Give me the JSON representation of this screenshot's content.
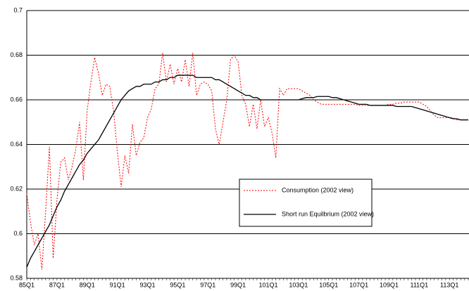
{
  "chart_data": {
    "type": "line",
    "categories": [
      "85Q1",
      null,
      null,
      null,
      null,
      null,
      null,
      null,
      "87Q1",
      null,
      null,
      null,
      null,
      null,
      null,
      null,
      "89Q1",
      null,
      null,
      null,
      null,
      null,
      null,
      null,
      "91Q1",
      null,
      null,
      null,
      null,
      null,
      null,
      null,
      "93Q1",
      null,
      null,
      null,
      null,
      null,
      null,
      null,
      "95Q1",
      null,
      null,
      null,
      null,
      null,
      null,
      null,
      "97Q1",
      null,
      null,
      null,
      null,
      null,
      null,
      null,
      "99Q1",
      null,
      null,
      null,
      null,
      null,
      null,
      null,
      "101Q1",
      null,
      null,
      null,
      null,
      null,
      null,
      null,
      "103Q1",
      null,
      null,
      null,
      null,
      null,
      null,
      null,
      "105Q1",
      null,
      null,
      null,
      null,
      null,
      null,
      null,
      "107Q1",
      null,
      null,
      null,
      null,
      null,
      null,
      null,
      "109Q1",
      null,
      null,
      null,
      null,
      null,
      null,
      null,
      "111Q1",
      null,
      null,
      null,
      null,
      null,
      null,
      null,
      "113Q1",
      null,
      null,
      null,
      null,
      null
    ],
    "series": [
      {
        "name": "Consumption (2002 view)",
        "color": "#ff0000",
        "style": "dotted",
        "values": [
          0.618,
          0.605,
          0.595,
          0.6,
          0.584,
          0.61,
          0.639,
          0.589,
          0.615,
          0.632,
          0.634,
          0.624,
          0.63,
          0.638,
          0.65,
          0.624,
          0.655,
          0.668,
          0.679,
          0.672,
          0.662,
          0.667,
          0.666,
          0.655,
          0.637,
          0.621,
          0.635,
          0.627,
          0.649,
          0.635,
          0.641,
          0.643,
          0.652,
          0.656,
          0.665,
          0.667,
          0.681,
          0.668,
          0.676,
          0.667,
          0.674,
          0.668,
          0.678,
          0.666,
          0.681,
          0.662,
          0.667,
          0.668,
          0.667,
          0.664,
          0.647,
          0.64,
          0.65,
          0.66,
          0.678,
          0.68,
          0.677,
          0.662,
          0.658,
          0.648,
          0.658,
          0.647,
          0.66,
          0.648,
          0.652,
          0.645,
          0.634,
          0.665,
          0.662,
          0.665,
          0.665,
          0.665,
          0.665,
          0.664,
          0.663,
          0.662,
          0.66,
          0.659,
          0.658,
          0.658,
          0.658,
          0.658,
          0.658,
          0.658,
          0.658,
          0.658,
          0.658,
          0.658,
          0.6575,
          0.6575,
          0.6575,
          0.6575,
          0.6575,
          0.6575,
          0.6575,
          0.6575,
          0.658,
          0.658,
          0.6585,
          0.6585,
          0.659,
          0.659,
          0.659,
          0.659,
          0.659,
          0.658,
          0.657,
          0.655,
          0.653,
          0.652,
          0.652,
          0.652,
          0.652,
          0.652,
          0.651,
          0.651,
          0.651,
          0.651
        ]
      },
      {
        "name": "Short run Equilbrium (2002 view)",
        "color": "#000000",
        "style": "solid",
        "values": [
          0.585,
          0.589,
          0.592,
          0.595,
          0.598,
          0.601,
          0.604,
          0.608,
          0.612,
          0.615,
          0.619,
          0.622,
          0.625,
          0.628,
          0.631,
          0.633,
          0.636,
          0.638,
          0.64,
          0.642,
          0.645,
          0.648,
          0.651,
          0.654,
          0.657,
          0.66,
          0.662,
          0.664,
          0.665,
          0.666,
          0.666,
          0.667,
          0.667,
          0.667,
          0.668,
          0.668,
          0.669,
          0.669,
          0.67,
          0.67,
          0.671,
          0.671,
          0.671,
          0.671,
          0.671,
          0.67,
          0.67,
          0.67,
          0.67,
          0.67,
          0.669,
          0.669,
          0.668,
          0.667,
          0.666,
          0.665,
          0.664,
          0.663,
          0.662,
          0.662,
          0.661,
          0.661,
          0.66,
          0.66,
          0.66,
          0.66,
          0.66,
          0.66,
          0.66,
          0.66,
          0.66,
          0.66,
          0.66,
          0.6605,
          0.661,
          0.661,
          0.661,
          0.6615,
          0.6615,
          0.6615,
          0.6615,
          0.661,
          0.661,
          0.6605,
          0.66,
          0.6595,
          0.659,
          0.6585,
          0.658,
          0.658,
          0.658,
          0.6575,
          0.6575,
          0.6575,
          0.6575,
          0.6575,
          0.6575,
          0.6575,
          0.657,
          0.657,
          0.657,
          0.657,
          0.657,
          0.6565,
          0.656,
          0.6555,
          0.655,
          0.6545,
          0.654,
          0.6535,
          0.653,
          0.6525,
          0.652,
          0.6515,
          0.6515,
          0.651,
          0.651,
          0.651
        ]
      }
    ],
    "ylim": [
      0.58,
      0.7
    ],
    "yticks": [
      0.58,
      0.6,
      0.62,
      0.64,
      0.66,
      0.68,
      0.7
    ],
    "grid": true
  }
}
